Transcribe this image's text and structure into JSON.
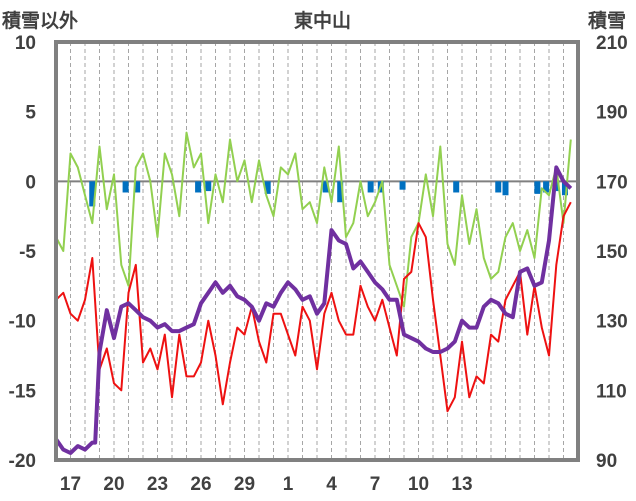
{
  "chart_data": {
    "type": "line",
    "title": "東中山",
    "left_axis_label": "積雪以外",
    "right_axis_label": "積雪",
    "left_ylim": [
      -20,
      10
    ],
    "left_yticks": [
      "10",
      "5",
      "0",
      "-5",
      "-10",
      "-15",
      "-20"
    ],
    "right_ylim": [
      90,
      210
    ],
    "right_yticks": [
      "210",
      "190",
      "170",
      "150",
      "130",
      "110",
      "90"
    ],
    "x_ticks": [
      "17",
      "20",
      "23",
      "26",
      "29",
      "1",
      "4",
      "7",
      "10",
      "13"
    ],
    "x_days": 36,
    "grid": "vertical dashed gridlines every day, solid zero line",
    "colors": {
      "temperature": "#ee1111",
      "precipitation": "#92d050",
      "snowfall": "#0070c0",
      "snow_depth": "#7030a0",
      "frame": "#808080",
      "zero_line": "#808080",
      "grid": "#a6a6a6"
    },
    "series": [
      {
        "key": "temperature",
        "axis": "left",
        "x": [
          0,
          0.5,
          1,
          1.5,
          2,
          2.5,
          3,
          3.5,
          4,
          4.5,
          5,
          5.5,
          6,
          6.5,
          7,
          7.5,
          8,
          8.5,
          9,
          9.5,
          10,
          10.5,
          11,
          11.5,
          12,
          12.5,
          13,
          13.5,
          14,
          14.5,
          15,
          15.5,
          16,
          16.5,
          17,
          17.5,
          18,
          18.5,
          19,
          19.5,
          20,
          20.5,
          21,
          21.5,
          22,
          22.5,
          23,
          23.5,
          24,
          24.5,
          25,
          25.5,
          26,
          26.5,
          27,
          27.5,
          28,
          28.5,
          29,
          29.5,
          30,
          30.5,
          31,
          31.5,
          32,
          32.5,
          33,
          33.5,
          34,
          34.5,
          35,
          35.5
        ],
        "values": [
          -8.5,
          -8,
          -9.5,
          -10,
          -8.5,
          -5.5,
          -13.5,
          -12,
          -14.5,
          -15,
          -8,
          -6,
          -13,
          -12,
          -13.5,
          -11,
          -15.5,
          -11,
          -14,
          -14,
          -13,
          -10,
          -12.5,
          -16,
          -13,
          -10.5,
          -11,
          -9,
          -11.5,
          -13,
          -9.5,
          -9.5,
          -11,
          -12.5,
          -9,
          -10,
          -13.5,
          -9.5,
          -8,
          -10,
          -11,
          -11,
          -7.5,
          -9,
          -10,
          -8.5,
          -10.5,
          -12.5,
          -7,
          -6.5,
          -3,
          -4,
          -8.5,
          -12.5,
          -16.5,
          -15.5,
          -11.5,
          -15.5,
          -14,
          -14.5,
          -11,
          -11.5,
          -8.5,
          -7.5,
          -6.5,
          -11,
          -7.5,
          -10.5,
          -12.5,
          -6,
          -2.5,
          -1.5
        ]
      },
      {
        "key": "precipitation",
        "axis": "left",
        "x": [
          0,
          0.5,
          1,
          1.5,
          2,
          2.5,
          3,
          3.5,
          4,
          4.5,
          5,
          5.5,
          6,
          6.5,
          7,
          7.5,
          8,
          8.5,
          9,
          9.5,
          10,
          10.5,
          11,
          11.5,
          12,
          12.5,
          13,
          13.5,
          14,
          14.5,
          15,
          15.5,
          16,
          16.5,
          17,
          17.5,
          18,
          18.5,
          19,
          19.5,
          20,
          20.5,
          21,
          21.5,
          22,
          22.5,
          23,
          23.5,
          24,
          24.5,
          25,
          25.5,
          26,
          26.5,
          27,
          27.5,
          28,
          28.5,
          29,
          29.5,
          30,
          30.5,
          31,
          31.5,
          32,
          32.5,
          33,
          33.5,
          34,
          34.5,
          35,
          35.5
        ],
        "values": [
          -4,
          -5,
          2,
          1,
          -1,
          -3,
          2.5,
          -2,
          0.5,
          -6,
          -7.5,
          1,
          2,
          0,
          -4,
          2,
          0.5,
          -2.5,
          3.5,
          1,
          2,
          -3,
          0.5,
          -1.5,
          3,
          0,
          1.5,
          -1.5,
          1.5,
          -1,
          -2.5,
          1,
          0.5,
          2,
          -2,
          -1.5,
          -3,
          1,
          -1.5,
          2.5,
          -4,
          -3,
          0,
          -2.5,
          -1.5,
          0,
          -6,
          -7.5,
          -9,
          -4,
          -3,
          0.5,
          -2.5,
          2.5,
          -4.5,
          -6,
          -1,
          -4.5,
          -2,
          -5.5,
          -7,
          -6.5,
          -4,
          -3,
          -5,
          -3.5,
          -5.5,
          -0.5,
          -1,
          1,
          -3,
          3
        ]
      },
      {
        "key": "snowfall",
        "axis": "left",
        "x": [
          2.5,
          4.8,
          5.6,
          9.8,
          10.5,
          14.6,
          18.6,
          19.6,
          21.7,
          22.4,
          23.9,
          27.6,
          30.5,
          31.0,
          33.2,
          33.8,
          34.5,
          35.1
        ],
        "values": [
          1.8,
          0.8,
          0.8,
          0.8,
          0.7,
          0.9,
          0.8,
          1.5,
          0.8,
          0.8,
          0.6,
          0.8,
          0.8,
          1.0,
          0.9,
          0.8,
          0.7,
          1.0
        ]
      },
      {
        "key": "snow_depth",
        "axis": "right",
        "x": [
          0,
          0.5,
          1,
          1.5,
          2,
          2.5,
          2.7,
          3,
          3.5,
          4,
          4.5,
          5,
          5.5,
          6,
          6.5,
          7,
          7.5,
          8,
          8.5,
          9,
          9.5,
          10,
          10.5,
          11,
          11.5,
          12,
          12.5,
          13,
          13.5,
          14,
          14.5,
          15,
          15.5,
          16,
          16.5,
          17,
          17.5,
          18,
          18.5,
          19,
          19.5,
          20,
          20.5,
          21,
          21.5,
          22,
          22.5,
          23,
          23.5,
          24,
          24.5,
          25,
          25.5,
          26,
          26.5,
          27,
          27.5,
          28,
          28.5,
          29,
          29.5,
          30,
          30.5,
          31,
          31.5,
          32,
          32.5,
          33,
          33.5,
          34,
          34.5,
          35,
          35.5
        ],
        "values": [
          96,
          93,
          92,
          94,
          93,
          95,
          95,
          121,
          133,
          125,
          134,
          135,
          133,
          131,
          130,
          128,
          129,
          127,
          127,
          128,
          129,
          135,
          138,
          141,
          138,
          140,
          137,
          136,
          134,
          130,
          135,
          134,
          138,
          141,
          139,
          136,
          137,
          132,
          135,
          156,
          153,
          152,
          145,
          147,
          144,
          141,
          139,
          136,
          136,
          126,
          125,
          124,
          122,
          121,
          121,
          122,
          124,
          130,
          128,
          128,
          134,
          136,
          135,
          132,
          131,
          144,
          145,
          140,
          141,
          153,
          174,
          170,
          168
        ]
      }
    ]
  }
}
